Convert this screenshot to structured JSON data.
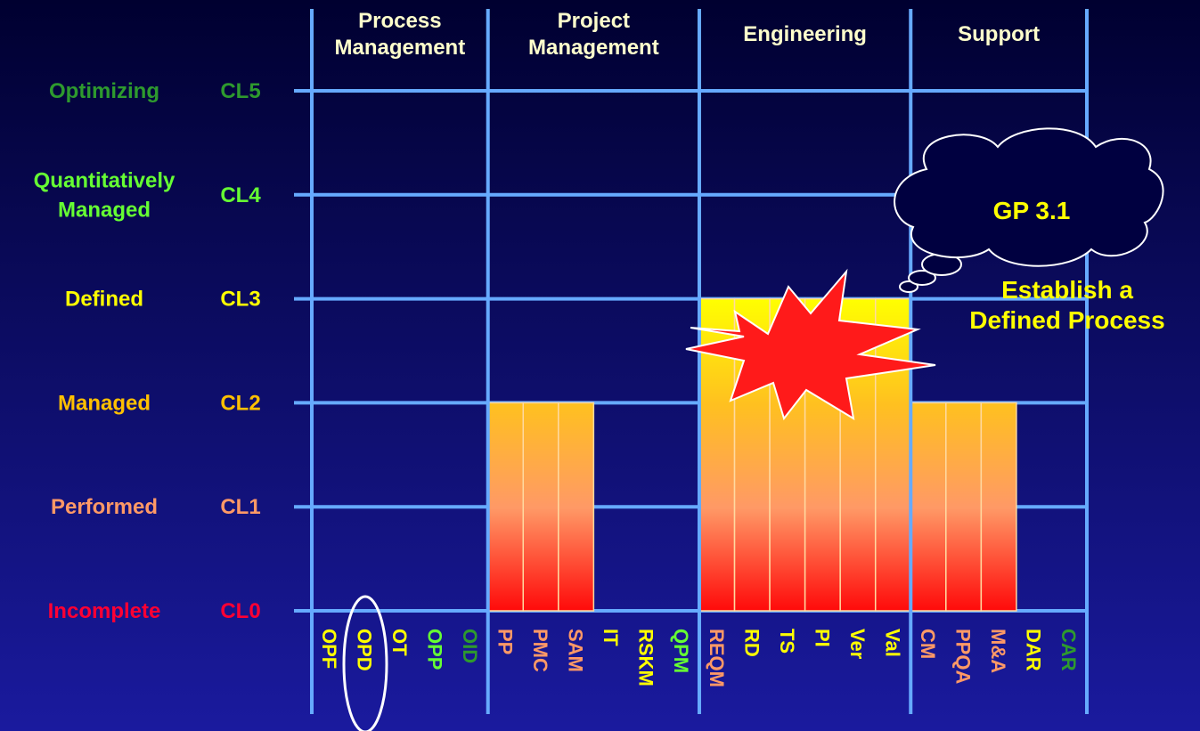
{
  "chart_data": {
    "type": "bar",
    "groups": [
      {
        "name": "Process\nManagement",
        "size": 5
      },
      {
        "name": "Project\nManagement",
        "size": 6
      },
      {
        "name": "Engineering",
        "size": 6
      },
      {
        "name": "Support",
        "size": 5
      }
    ],
    "categories": [
      "OPF",
      "OPD",
      "OT",
      "OPP",
      "OID",
      "PP",
      "PMC",
      "SAM",
      "IT",
      "RSKM",
      "QPM",
      "REQM",
      "RD",
      "TS",
      "PI",
      "Ver",
      "Val",
      "CM",
      "PPQA",
      "M&A",
      "DAR",
      "CAR"
    ],
    "values": [
      0,
      0,
      0,
      0,
      0,
      2,
      2,
      2,
      0,
      0,
      0,
      3,
      3,
      3,
      3,
      3,
      3,
      2,
      2,
      2,
      0,
      0
    ],
    "label_colors": [
      "#ffff00",
      "#ffff00",
      "#ffff00",
      "#66ff33",
      "#2e9a2e",
      "#ff9966",
      "#ff9966",
      "#ff9966",
      "#ffff00",
      "#ffff00",
      "#66ff33",
      "#ff9966",
      "#ffff00",
      "#ffff00",
      "#ffff00",
      "#ffff00",
      "#ffff00",
      "#ff9966",
      "#ff9966",
      "#ff9966",
      "#ffff00",
      "#2e9a2e"
    ],
    "ylim": [
      0,
      5
    ],
    "yticks": [
      {
        "value": 0,
        "label": "CL0"
      },
      {
        "value": 1,
        "label": "CL1"
      },
      {
        "value": 2,
        "label": "CL2"
      },
      {
        "value": 3,
        "label": "CL3"
      },
      {
        "value": 4,
        "label": "CL4"
      },
      {
        "value": 5,
        "label": "CL5"
      }
    ],
    "level_names": [
      "Incomplete",
      "Performed",
      "Managed",
      "Defined",
      "Quantitatively\nManaged",
      "Optimizing"
    ],
    "level_colors": [
      "#ff0033",
      "#ff9966",
      "#ffc000",
      "#ffff00",
      "#66ff33",
      "#2e9a2e"
    ],
    "grid": true,
    "annotations": [
      "GP 3.1",
      "Establish a\nDefined Process"
    ]
  }
}
